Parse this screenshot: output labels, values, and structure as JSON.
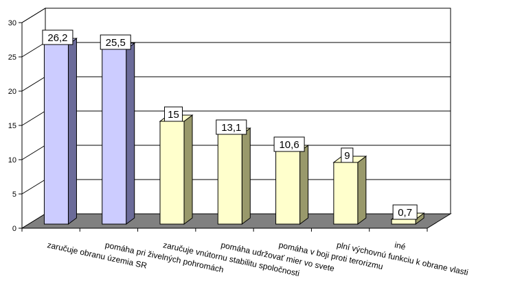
{
  "chart_data": {
    "type": "bar",
    "style": "3d-column",
    "categories": [
      "zaručuje obranu územia SR",
      "pomáha pri živelných pohromách",
      "zaručuje vnútornu stabilitu spoločnosti",
      "pomáha udržovať mier vo svete",
      "pomáha v boji proti terorizmu",
      "plní výchovnú funkciu  k obrane vlasti",
      "iné"
    ],
    "values": [
      26.2,
      25.5,
      15,
      13.1,
      10.6,
      9,
      0.7
    ],
    "data_labels": [
      "26,2",
      "25,5",
      "15",
      "13,1",
      "10,6",
      "9",
      "0,7"
    ],
    "bar_colors": [
      "#ccccff",
      "#ccccff",
      "#ffffcc",
      "#ffffcc",
      "#ffffcc",
      "#ffffcc",
      "#ffffcc"
    ],
    "bar_side_colors": [
      "#6b6b99",
      "#6b6b99",
      "#99996b",
      "#99996b",
      "#99996b",
      "#99996b",
      "#99996b"
    ],
    "ylim": [
      0,
      30
    ],
    "yticks": [
      0,
      5,
      10,
      15,
      20,
      25,
      30
    ],
    "grid": true,
    "floor_color": "#808080",
    "legend": "none"
  }
}
